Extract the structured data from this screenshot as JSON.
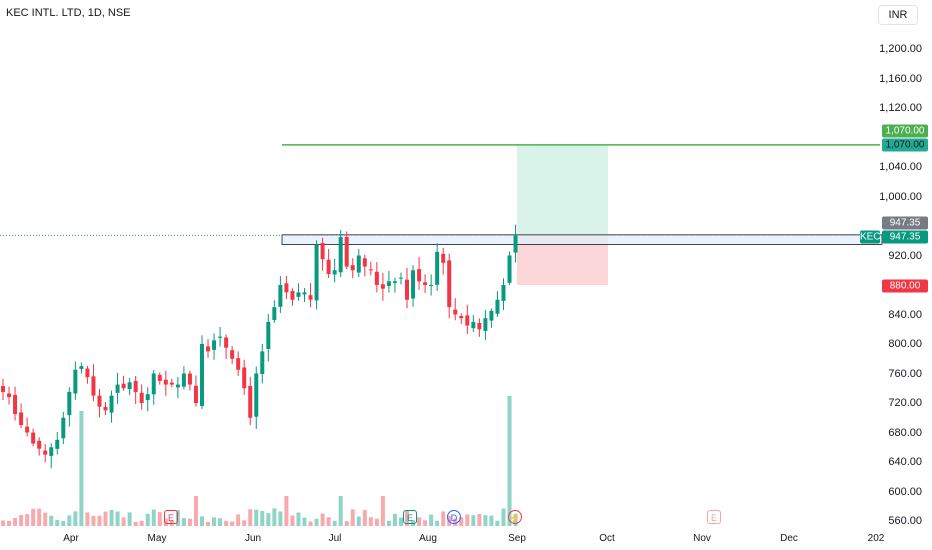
{
  "header": {
    "symbol_title": "KEC INTL. LTD, 1D, NSE",
    "currency": "INR"
  },
  "price_axis": {
    "labels": [
      "1,200.00",
      "1,160.00",
      "1,120.00",
      "1,040.00",
      "1,000.00",
      "920.00",
      "840.00",
      "800.00",
      "760.00",
      "720.00",
      "680.00",
      "640.00",
      "600.00",
      "560.00"
    ],
    "values": [
      1200,
      1160,
      1120,
      1040,
      1000,
      920,
      840,
      800,
      760,
      720,
      680,
      640,
      600,
      560
    ]
  },
  "tags": {
    "target_alert": "1,070.00",
    "target_line": "1,070.00",
    "last_price_gray": "947.35",
    "symbol_short": "KEC",
    "last_price": "947.35",
    "stop_loss": "880.00"
  },
  "time_axis": {
    "labels": [
      "Apr",
      "May",
      "Jun",
      "Jul",
      "Aug",
      "Sep",
      "Oct",
      "Nov",
      "Dec",
      "202"
    ]
  },
  "events": [
    {
      "icon": "earnings-icon",
      "text": "E"
    },
    {
      "icon": "earnings-icon",
      "text": "E"
    },
    {
      "icon": "dividend-icon",
      "text": "D"
    },
    {
      "icon": "flash-icon",
      "text": "⚡"
    },
    {
      "icon": "earnings-icon",
      "text": "E"
    }
  ],
  "colors": {
    "up": "#089981",
    "down": "#f23645",
    "target": "#4caf50",
    "zone_fill": "#e3effa",
    "profit_fill": "#d9f2ea",
    "loss_fill": "#fbd7da"
  },
  "chart_data": {
    "type": "candlestick",
    "ylim": [
      548,
      1228
    ],
    "resistance_zone": [
      935,
      948
    ],
    "target_price": 1070,
    "entry_price": 947.35,
    "stop_price": 880,
    "ohlc_closes": [
      735,
      728,
      705,
      690,
      680,
      665,
      658,
      650,
      660,
      670,
      700,
      735,
      765,
      770,
      755,
      730,
      715,
      710,
      730,
      745,
      740,
      748,
      735,
      720,
      732,
      760,
      750,
      745,
      745,
      745,
      760,
      745,
      720,
      800,
      790,
      805,
      810,
      795,
      780,
      765,
      740,
      700,
      760,
      790,
      830,
      850,
      880,
      870,
      860,
      870,
      870,
      860,
      935,
      915,
      895,
      900,
      945,
      905,
      900,
      920,
      905,
      900,
      880,
      875,
      885,
      885,
      890,
      860,
      900,
      885,
      880,
      880,
      925,
      910,
      850,
      840,
      835,
      825,
      830,
      820,
      835,
      845,
      860,
      880,
      920,
      947
    ]
  }
}
